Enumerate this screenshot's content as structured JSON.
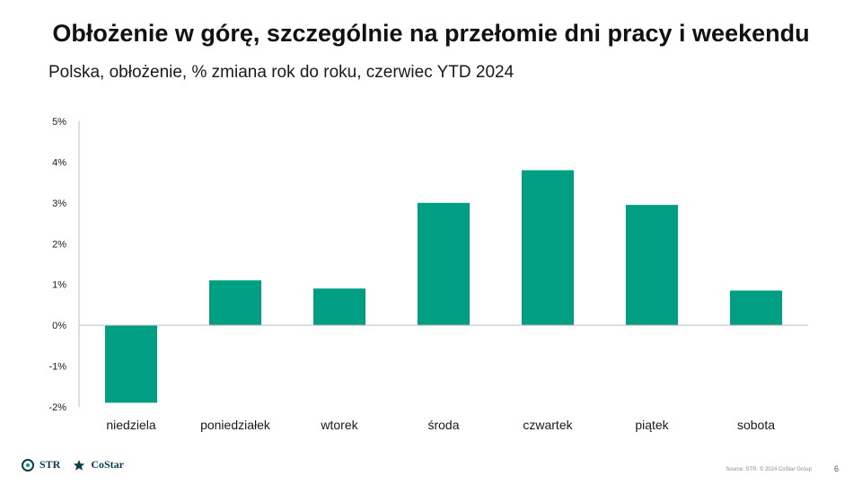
{
  "slide": {
    "title": "Obłożenie w górę, szczególnie na przełomie dni pracy i weekendu",
    "subtitle": "Polska, obłożenie, % zmiana rok do roku, czerwiec YTD 2024",
    "source": "Source: STR. © 2024 CoStar Group",
    "page_number": "6",
    "logos": {
      "str": "STR",
      "costar": "CoStar"
    }
  },
  "colors": {
    "bar": "#009e82",
    "axis": "#bfbfbf",
    "text": "#1a1a1a",
    "logo": "#0d3b4f"
  },
  "chart_data": {
    "type": "bar",
    "title": "",
    "xlabel": "",
    "ylabel": "",
    "categories": [
      "niedziela",
      "poniedziałek",
      "wtorek",
      "środa",
      "czwartek",
      "piątek",
      "sobota"
    ],
    "values": [
      -1.9,
      1.1,
      0.9,
      3.0,
      3.8,
      2.95,
      0.85
    ],
    "ylim": [
      -2,
      5
    ],
    "yticks": [
      "5%",
      "4%",
      "3%",
      "2%",
      "1%",
      "0%",
      "-1%",
      "-2%"
    ],
    "grid": false,
    "legend": "none"
  }
}
